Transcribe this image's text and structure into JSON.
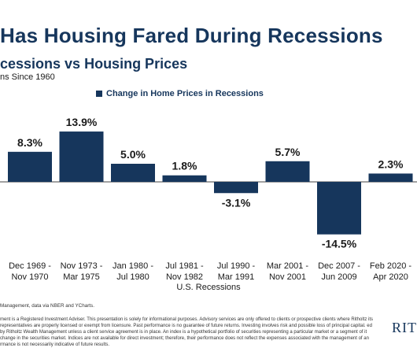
{
  "header": {
    "title": "Has Housing Fared During Recessions",
    "chart_title": "cessions vs Housing Prices",
    "chart_subtitle": "ns Since 1960",
    "legend_label": "Change in Home Prices in Recessions"
  },
  "colors": {
    "bar": "#16365c",
    "text": "#1a1a1a"
  },
  "chart_data": {
    "type": "bar",
    "title": "cessions vs Housing Prices",
    "subtitle": "ns Since 1960",
    "xlabel": "U.S. Recessions",
    "ylabel": "",
    "categories": [
      [
        "Dec 1969 -",
        "Nov 1970"
      ],
      [
        "Nov 1973 -",
        "Mar 1975"
      ],
      [
        "Jan 1980 -",
        "Jul 1980"
      ],
      [
        "Jul 1981 -",
        "Nov 1982"
      ],
      [
        "Jul 1990 -",
        "Mar 1991"
      ],
      [
        "Mar 2001 -",
        "Nov 2001"
      ],
      [
        "Dec 2007 -",
        "Jun 2009"
      ],
      [
        "Feb 2020 -",
        "Apr 2020"
      ]
    ],
    "series": [
      {
        "name": "Change in Home Prices in Recessions",
        "values": [
          8.3,
          13.9,
          5.0,
          1.8,
          -3.1,
          5.7,
          -14.5,
          2.3
        ],
        "labels": [
          "8.3%",
          "13.9%",
          "5.0%",
          "1.8%",
          "-3.1%",
          "5.7%",
          "-14.5%",
          "2.3%"
        ]
      }
    ],
    "ylim": [
      -16,
      16
    ],
    "grid": false,
    "legend": "top"
  },
  "footer": {
    "source": "Management, data via NBER and YCharts.",
    "disclaimer": "ment is a Registered Investment Adviser. This presentation is solely for informational purposes. Advisory services are only offered to clients or prospective clients where Ritholtz its representatives are properly licensed or exempt from licensure. Past performance is no guarantee of future returns. Investing involves risk and possible loss of principal capital. ed by Ritholtz Wealth Management unless a client service agreement is in place. An index is a hypothetical portfolio of securities representing a particular market or a segment of it change in the securities market. Indices are not available for direct investment; therefore, their performance does not reflect the expenses associated with the management of an rmance is not necessarily indicative of future results.",
    "logo": "RIT"
  }
}
